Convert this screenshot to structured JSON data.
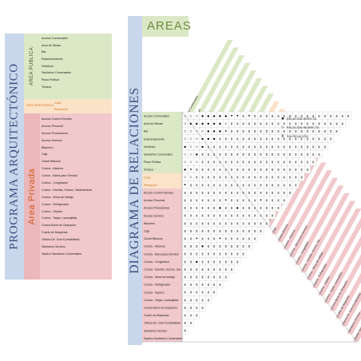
{
  "program": {
    "title": "PROGRAMA ARQUITECTÓNICO",
    "public": {
      "label": "AREA PUBLICA",
      "items": [
        "Acceso Comensales",
        "Area de Mesas",
        "Bar",
        "Estacionamiento",
        "Vestíbulo",
        "Sanitarios Comensales",
        "Plaza Publica",
        "Terraza"
      ]
    },
    "semi": {
      "label": "AREA SEMI PRIVADA",
      "items": [
        "Cava",
        "Recepción"
      ]
    },
    "private": {
      "label": "Area Privada",
      "items": [
        "Acceso Control Servicio",
        "Acceso Personal",
        "Acceso Proveedores",
        "Acceso Servicio",
        "Basurero",
        "Caja",
        "Closet Blancos",
        "Cocina - Alacena",
        "Cocina - Barra para Servicio",
        "Cocina - Congelador",
        "Cocina - Estufas, Hornos, Salamandras",
        "Cocina - Mesa de trabajo",
        "Cocina - Refrigerador",
        "Cocina - Septico",
        "Cocina - Tarjas, Lavavajillas",
        "Cocina Barra de Despacho",
        "Cuarto de Maquinas",
        "Oficina Dir. Gral /Contabilidad",
        "Sanitarios Servicio",
        "Septico Sanitarios Comensales"
      ]
    }
  },
  "diagram": {
    "title": "DIAGRAMA DE RELACIONES",
    "areas_title": "AREAS",
    "rows": [
      "Acceso Comensales",
      "Area de Mesas",
      "Bar",
      "Estacionamiento",
      "Vestíbulo",
      "Sanitarios Comensales",
      "Plaza Publica",
      "Terraza",
      "Cava",
      "Recepción",
      "Acceso Control Servicio",
      "Acceso Personal",
      "Acceso Proveedores",
      "Acceso Servicio",
      "Basurero",
      "Caja",
      "Closet Blancos",
      "Cocina - Alacena",
      "Cocina - Barra para Servicio",
      "Cocina - Congelador",
      "Cocina - Estufas, Hornos, Sal...",
      "Cocina - Mesa de trabajo",
      "Cocina - Refrigerador",
      "Cocina - Septico",
      "Cocina - Tarjas, Lavavajillas",
      "Cocina Barra de Despacho",
      "Cuarto de Maquinas",
      "Oficina Dir. Gral /Contabilidad",
      "Sanitarios Servicio",
      "Septico Sanitarios Comensales"
    ],
    "zone_colors": {
      "public": "#dbe8c5",
      "semi": "#fbe3c8",
      "private": "#f1c8cb"
    },
    "symbols": {
      "direct": "●",
      "indirect": "○",
      "none": "x"
    },
    "matrix": [
      "ooo●●●●●..x.xxxxxxxxxxxxxxxxx",
      "o●●●●●●oxxxxxxxxxxxxxxxxxxxx",
      "oooo●●●.xxxxxxxxxxxxxxxxxxx",
      "ooo●●●xxxxxxxxxxxxxxxxxxxx",
      "●oo●xxxxxxxxxxxxxxxxxxxxx",
      "oo●xxxxxxxxxxxxxxxxxxxxx",
      "oooxxxxxxxxxxxxxxxxxxxx",
      "●.xxxxxxxxxxxxxxxxxxxx",
      "ooxxxxxxxxxxxxxxxxxxx",
      ".xxxxxxxxxxxxxxxxxxx",
      "xxxxxxxxxxxxxxxxxxx",
      "xxxxxxx.xxxxx.xxxx",
      "xxxxxx●xx●xxxxxxx",
      "xxxxxxxxxxxxxxxx",
      "xxxxxxxxxxxxxxx",
      "xxxxxxxxxxxxxx",
      "xx.xxx.xxxxxx",
      "xxx●xxxxxxxx",
      "xxxxxxxxxxx",
      "xx●xxxxxxx",
      "xxxxxxxxx",
      "xxxxxxxx",
      "xxxxxxx",
      "xxxxxx",
      "xxxxx",
      "xxxx",
      "xxx",
      "xx",
      "x"
    ]
  },
  "legend": [
    {
      "symbol": "●",
      "text": "RELACION DIRECTA"
    },
    {
      "symbol": "○",
      "text": "RELACION INDIRECTA"
    },
    {
      "symbol": "x",
      "text": "SIN RELACIÓN"
    }
  ]
}
